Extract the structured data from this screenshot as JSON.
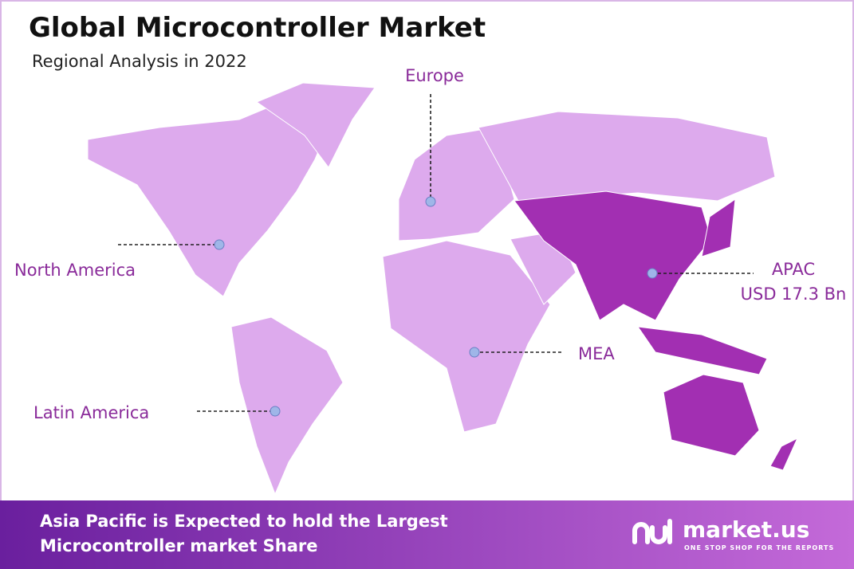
{
  "header": {
    "title": "Global Microcontroller Market",
    "subtitle": "Regional Analysis in 2022"
  },
  "regions": [
    {
      "label": "Europe"
    },
    {
      "label": "North America"
    },
    {
      "label": "APAC",
      "value": "USD 17.3 Bn"
    },
    {
      "label": "MEA"
    },
    {
      "label": "Latin America"
    }
  ],
  "footer": {
    "lines": [
      "Asia Pacific is Expected to hold the Largest",
      "Microcontroller market Share"
    ],
    "brand": "market.us",
    "tagline": "ONE STOP SHOP FOR THE REPORTS"
  }
}
